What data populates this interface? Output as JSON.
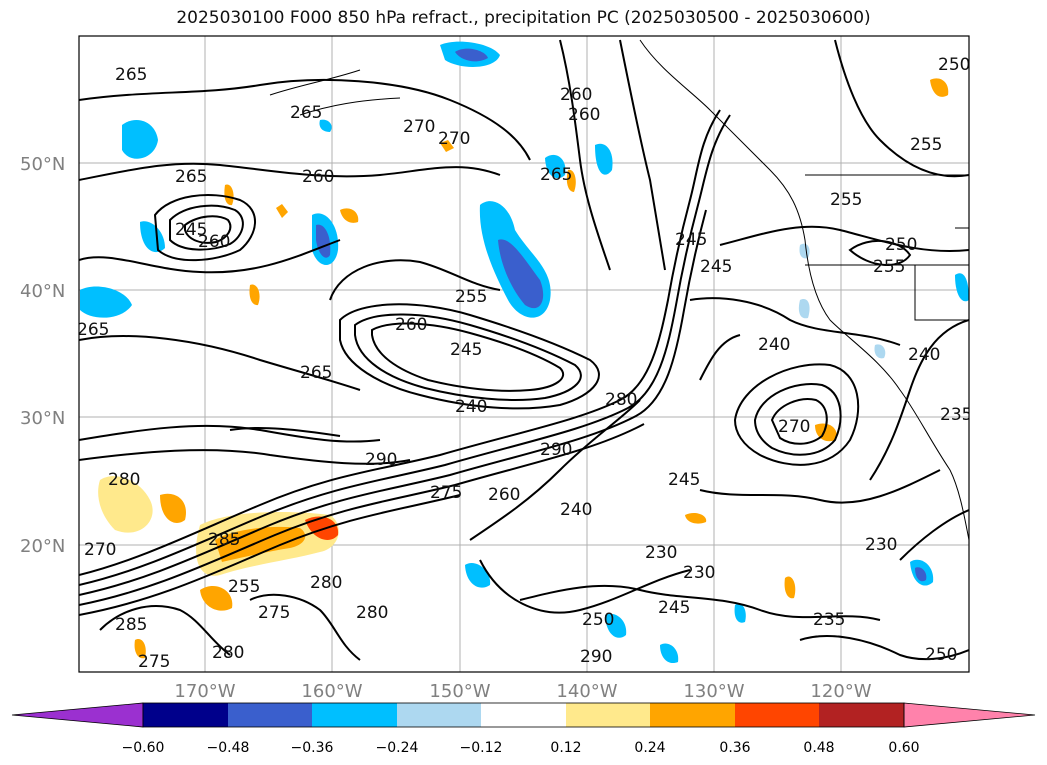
{
  "title": "2025030100 F000 850 hPa refract., precipitation PC (2025030500 - 2025030600)",
  "lat_labels": [
    "50°N",
    "40°N",
    "30°N",
    "20°N"
  ],
  "lon_labels": [
    "170°W",
    "160°W",
    "150°W",
    "140°W",
    "130°W",
    "120°W"
  ],
  "colorbar": {
    "ticks": [
      "−0.60",
      "−0.48",
      "−0.36",
      "−0.24",
      "−0.12",
      "0.12",
      "0.24",
      "0.36",
      "0.48",
      "0.60"
    ],
    "colors": [
      "#9b30d0",
      "#00008b",
      "#3a5fcd",
      "#00bfff",
      "#add8f0",
      "#ffffff",
      "#ffe98c",
      "#ffa500",
      "#ff4500",
      "#b22222",
      "#ff82ab"
    ]
  },
  "contour_labels": [
    {
      "text": "265"
    },
    {
      "text": "265"
    },
    {
      "text": "270"
    },
    {
      "text": "270"
    },
    {
      "text": "260"
    },
    {
      "text": "265"
    },
    {
      "text": "260"
    },
    {
      "text": "255"
    },
    {
      "text": "255"
    },
    {
      "text": "265"
    },
    {
      "text": "260"
    },
    {
      "text": "260"
    },
    {
      "text": "245"
    },
    {
      "text": "250"
    },
    {
      "text": "255"
    },
    {
      "text": "240"
    },
    {
      "text": "265"
    },
    {
      "text": "265"
    },
    {
      "text": "245"
    },
    {
      "text": "240"
    },
    {
      "text": "280"
    },
    {
      "text": "290"
    },
    {
      "text": "290"
    },
    {
      "text": "275"
    },
    {
      "text": "260"
    },
    {
      "text": "240"
    },
    {
      "text": "245"
    },
    {
      "text": "270"
    },
    {
      "text": "230"
    },
    {
      "text": "230"
    },
    {
      "text": "245"
    },
    {
      "text": "250"
    },
    {
      "text": "235"
    },
    {
      "text": "230"
    },
    {
      "text": "280"
    },
    {
      "text": "285"
    },
    {
      "text": "275"
    },
    {
      "text": "280"
    },
    {
      "text": "255"
    },
    {
      "text": "275"
    },
    {
      "text": "270"
    },
    {
      "text": "285"
    },
    {
      "text": "280"
    },
    {
      "text": "280"
    },
    {
      "text": "290"
    },
    {
      "text": "245"
    },
    {
      "text": "240"
    },
    {
      "text": "250"
    },
    {
      "text": "255"
    },
    {
      "text": "235"
    },
    {
      "text": "260"
    },
    {
      "text": "245"
    },
    {
      "text": "250"
    }
  ]
}
